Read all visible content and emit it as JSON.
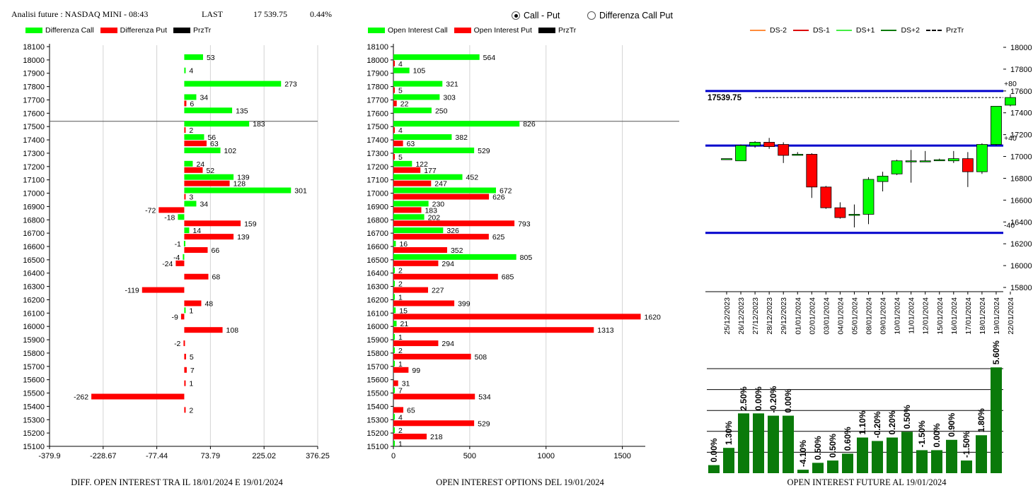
{
  "header": {
    "title": "Analisi future : NASDAQ MINI - 08:43",
    "last_label": "LAST",
    "last_value": "17 539.75",
    "change": "0.44%"
  },
  "radio": {
    "option1": "Call - Put",
    "option2": "Differenza Call Put",
    "selected": "Call - Put"
  },
  "colors": {
    "call": "#00ff00",
    "put": "#ff0000",
    "prztr": "#000000",
    "band": "#0000cc",
    "dark_green": "#0a7a0a",
    "ds_minus2": "#ff8c3c"
  },
  "chart_data": [
    {
      "type": "bar",
      "id": "diff",
      "orientation": "horizontal",
      "title": "DIFF. OPEN INTEREST TRA IL 18/01/2024 E 19/01/2024",
      "legend": [
        "Differenza Call",
        "Differenza Put",
        "PrzTr"
      ],
      "categories": [
        "18100",
        "18000",
        "17900",
        "17800",
        "17700",
        "17600",
        "17500",
        "17400",
        "17300",
        "17200",
        "17100",
        "17000",
        "16900",
        "16800",
        "16700",
        "16600",
        "16500",
        "16400",
        "16300",
        "16200",
        "16100",
        "16000",
        "15900",
        "15800",
        "15700",
        "15600",
        "15500",
        "15400",
        "15300",
        "15200",
        "15100"
      ],
      "series": [
        {
          "name": "Differenza Call",
          "values": [
            null,
            53,
            4,
            273,
            34,
            135,
            183,
            56,
            102,
            24,
            139,
            301,
            34,
            -18,
            14,
            -1,
            -4,
            null,
            null,
            null,
            1,
            null,
            null,
            null,
            null,
            null,
            null,
            null,
            null,
            null,
            null
          ]
        },
        {
          "name": "Differenza Put",
          "values": [
            null,
            null,
            null,
            null,
            6,
            null,
            2,
            63,
            null,
            52,
            128,
            3,
            -72,
            159,
            139,
            66,
            -24,
            68,
            -119,
            48,
            -9,
            108,
            -2,
            5,
            7,
            1,
            -262,
            2,
            null,
            null,
            null
          ]
        }
      ],
      "xlim": [
        -379.9,
        376.25
      ],
      "xticks": [
        "-379.9",
        "-228.67",
        "-77.44",
        "73.79",
        "225.02",
        "376.25"
      ],
      "prztr": 17539.75
    },
    {
      "type": "bar",
      "id": "oi",
      "orientation": "horizontal",
      "title": "OPEN INTEREST OPTIONS DEL 19/01/2024",
      "legend": [
        "Open Interest Call",
        "Open Interest Put",
        "PrzTr"
      ],
      "categories": [
        "18100",
        "18000",
        "17900",
        "17800",
        "17700",
        "17600",
        "17500",
        "17400",
        "17300",
        "17200",
        "17100",
        "17000",
        "16900",
        "16800",
        "16700",
        "16600",
        "16500",
        "16400",
        "16300",
        "16200",
        "16100",
        "16000",
        "15900",
        "15800",
        "15700",
        "15600",
        "15500",
        "15400",
        "15300",
        "15200",
        "15100"
      ],
      "series": [
        {
          "name": "Open Interest Call",
          "values": [
            null,
            564,
            105,
            321,
            303,
            250,
            826,
            382,
            529,
            122,
            452,
            672,
            230,
            202,
            326,
            16,
            805,
            2,
            2,
            1,
            15,
            21,
            1,
            2,
            1,
            null,
            7,
            null,
            4,
            2,
            1
          ]
        },
        {
          "name": "Open Interest Put",
          "values": [
            null,
            4,
            null,
            5,
            22,
            null,
            4,
            63,
            5,
            177,
            247,
            626,
            183,
            793,
            625,
            352,
            294,
            685,
            227,
            399,
            1620,
            1313,
            294,
            508,
            99,
            31,
            534,
            65,
            529,
            218,
            null
          ]
        }
      ],
      "xlim": [
        0,
        1650
      ],
      "xticks": [
        "0",
        "500",
        "1000",
        "1500"
      ],
      "prztr": 17539.75
    },
    {
      "type": "candlestick",
      "id": "future",
      "legend": [
        "DS-2",
        "DS-1",
        "DS+1",
        "DS+2",
        "PrzTr"
      ],
      "dates": [
        "25/12/2023",
        "26/12/2023",
        "27/12/2023",
        "28/12/2023",
        "29/12/2023",
        "01/01/2024",
        "02/01/2024",
        "03/01/2024",
        "04/01/2024",
        "05/01/2024",
        "08/01/2024",
        "09/01/2024",
        "10/01/2024",
        "11/01/2024",
        "12/01/2024",
        "15/01/2024",
        "16/01/2024",
        "17/01/2024",
        "18/01/2024",
        "19/01/2024",
        "22/01/2024"
      ],
      "ohlc": [
        [
          16980,
          16980,
          16980,
          16980
        ],
        [
          16960,
          17110,
          16960,
          17100
        ],
        [
          17100,
          17140,
          17080,
          17130
        ],
        [
          17130,
          17170,
          17070,
          17090
        ],
        [
          17110,
          17130,
          16940,
          17010
        ],
        [
          17020,
          17040,
          17010,
          17020
        ],
        [
          17020,
          17030,
          16620,
          16720
        ],
        [
          16720,
          16730,
          16520,
          16530
        ],
        [
          16530,
          16580,
          16430,
          16440
        ],
        [
          16460,
          16560,
          16350,
          16470
        ],
        [
          16470,
          16810,
          16380,
          16790
        ],
        [
          16770,
          16860,
          16680,
          16820
        ],
        [
          16840,
          16970,
          16830,
          16960
        ],
        [
          16960,
          17060,
          16760,
          16960
        ],
        [
          16960,
          17050,
          16960,
          16960
        ],
        [
          16970,
          16980,
          16960,
          16970
        ],
        [
          16960,
          17050,
          16940,
          16980
        ],
        [
          16980,
          17040,
          16720,
          16860
        ],
        [
          16860,
          17120,
          16840,
          17110
        ],
        [
          17110,
          17460,
          17100,
          17460
        ],
        [
          17470,
          17570,
          17460,
          17540
        ]
      ],
      "ylim": [
        15800,
        18000
      ],
      "yticks": [
        "15800",
        "16000",
        "16200",
        "16400",
        "16600",
        "16800",
        "17000",
        "17200",
        "17400",
        "17600",
        "17800",
        "18000"
      ],
      "bands": [
        {
          "value": 17600,
          "label": "+80"
        },
        {
          "value": 17100,
          "label": "+40"
        },
        {
          "value": 16300,
          "label": "-40"
        }
      ],
      "prztr": 17539.75,
      "prztr_label": "17539.75"
    },
    {
      "type": "bar",
      "id": "oi_future",
      "title": "OPEN INTEREST FUTURE AL 19/01/2024",
      "bar_heights": [
        0.07,
        0.22,
        0.52,
        0.52,
        0.5,
        0.5,
        0.03,
        0.09,
        0.11,
        0.17,
        0.31,
        0.28,
        0.31,
        0.36,
        0.2,
        0.2,
        0.29,
        0.11,
        0.33,
        0.92
      ],
      "labels": [
        "0.00%",
        "1.30%",
        "2.50%",
        "0.00%",
        "-0.20%",
        "0.00%",
        "-4.10%",
        "0.50%",
        "0.50%",
        "0.60%",
        "1.10%",
        "-0.20%",
        "0.20%",
        "0.50%",
        "-1.50%",
        "0.00%",
        "0.90%",
        "-1.50%",
        "1.80%",
        "5.60%"
      ]
    }
  ]
}
